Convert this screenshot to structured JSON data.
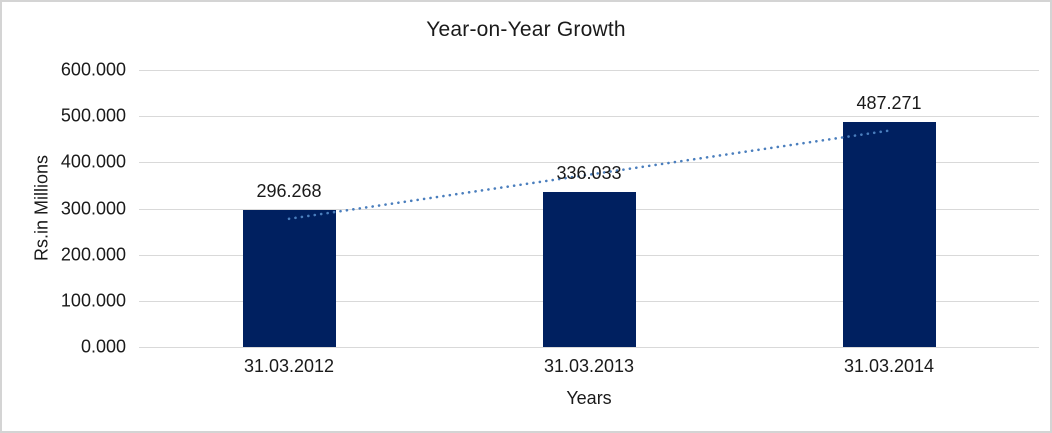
{
  "chart_data": {
    "type": "bar",
    "title": "Year-on-Year Growth",
    "categories": [
      "31.03.2012",
      "31.03.2013",
      "31.03.2014"
    ],
    "values": [
      296.268,
      336.033,
      487.271
    ],
    "data_labels": [
      "296.268",
      "336.033",
      "487.271"
    ],
    "xlabel": "Years",
    "ylabel": "Rs.in Millions",
    "ylim": [
      0,
      600
    ],
    "ytick_step": 100,
    "yticks": [
      "0.000",
      "100.000",
      "200.000",
      "300.000",
      "400.000",
      "500.000",
      "600.000"
    ],
    "grid": true,
    "legend": "none",
    "bar_color": "#002060",
    "gridline_color": "#d9d9d9",
    "text_color": "#1a1a1a",
    "trendline": {
      "type": "linear",
      "style": "dotted",
      "color": "#4a7ebd",
      "start_value": 277.7,
      "end_value": 468.7
    }
  }
}
